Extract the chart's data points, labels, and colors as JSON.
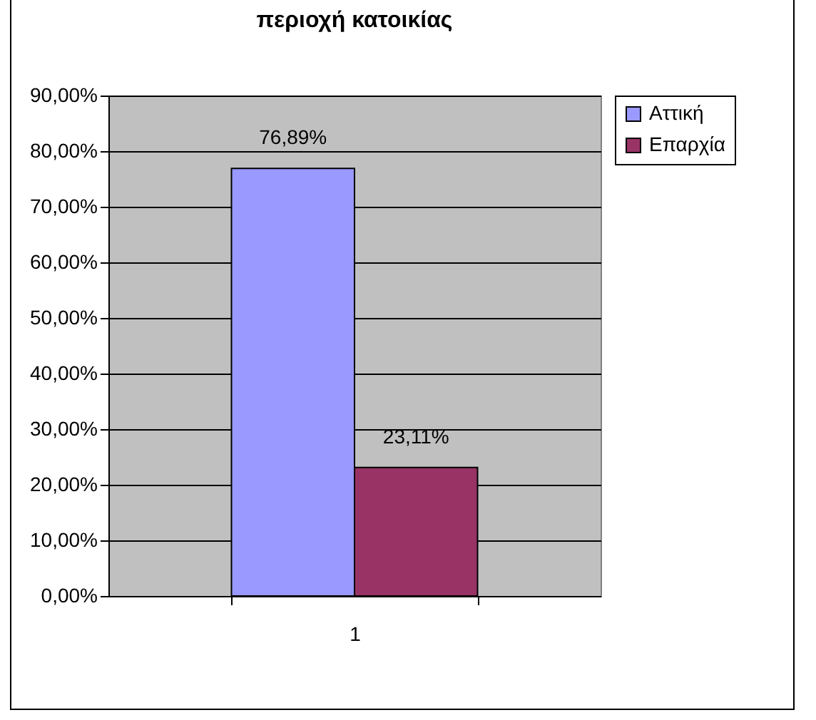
{
  "chart_data": {
    "type": "bar",
    "title": "περιοχή κατοικίας",
    "categories": [
      "1"
    ],
    "series": [
      {
        "name": "Αττική",
        "color": "#9999ff",
        "values": [
          76.89
        ],
        "value_labels": [
          "76,89%"
        ]
      },
      {
        "name": "Επαρχία",
        "color": "#993366",
        "values": [
          23.11
        ],
        "value_labels": [
          "23,11%"
        ]
      }
    ],
    "ylim": [
      0,
      90
    ],
    "yticks": [
      {
        "value": 0,
        "label": "0,00%"
      },
      {
        "value": 10,
        "label": "10,00%"
      },
      {
        "value": 20,
        "label": "20,00%"
      },
      {
        "value": 30,
        "label": "30,00%"
      },
      {
        "value": 40,
        "label": "40,00%"
      },
      {
        "value": 50,
        "label": "50,00%"
      },
      {
        "value": 60,
        "label": "60,00%"
      },
      {
        "value": 70,
        "label": "70,00%"
      },
      {
        "value": 80,
        "label": "80,00%"
      },
      {
        "value": 90,
        "label": "90,00%"
      }
    ],
    "grid": "y",
    "legend": "right"
  }
}
